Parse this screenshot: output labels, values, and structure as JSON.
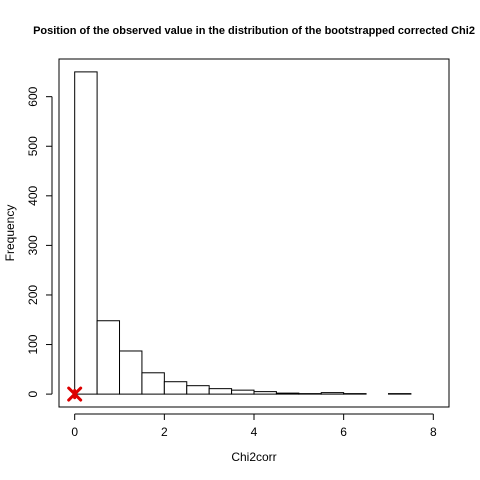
{
  "chart_data": {
    "type": "bar",
    "title": "Position of the observed value in the distribution of the bootstrapped corrected Chi2",
    "xlabel": "Chi2corr",
    "ylabel": "Frequency",
    "xlim": [
      -0.35,
      8.35
    ],
    "ylim": [
      -26,
      676
    ],
    "x_ticks": [
      0,
      2,
      4,
      6,
      8
    ],
    "y_ticks": [
      0,
      100,
      200,
      300,
      400,
      500,
      600
    ],
    "bins": [
      {
        "from": 0.0,
        "to": 0.5,
        "count": 650
      },
      {
        "from": 0.5,
        "to": 1.0,
        "count": 148
      },
      {
        "from": 1.0,
        "to": 1.5,
        "count": 87
      },
      {
        "from": 1.5,
        "to": 2.0,
        "count": 43
      },
      {
        "from": 2.0,
        "to": 2.5,
        "count": 25
      },
      {
        "from": 2.5,
        "to": 3.0,
        "count": 17
      },
      {
        "from": 3.0,
        "to": 3.5,
        "count": 11
      },
      {
        "from": 3.5,
        "to": 4.0,
        "count": 8
      },
      {
        "from": 4.0,
        "to": 4.5,
        "count": 5
      },
      {
        "from": 4.5,
        "to": 5.0,
        "count": 2
      },
      {
        "from": 5.0,
        "to": 5.5,
        "count": 1
      },
      {
        "from": 5.5,
        "to": 6.0,
        "count": 3
      },
      {
        "from": 6.0,
        "to": 6.5,
        "count": 1
      },
      {
        "from": 6.5,
        "to": 7.0,
        "count": 0
      },
      {
        "from": 7.0,
        "to": 7.5,
        "count": 1
      }
    ],
    "observed_value": {
      "x": 0,
      "y": 0,
      "marker": "star",
      "color": "#dd0000"
    },
    "grid": false,
    "legend": "none",
    "colors": {
      "bar_fill": "#ffffff",
      "bar_stroke": "#000000"
    }
  }
}
